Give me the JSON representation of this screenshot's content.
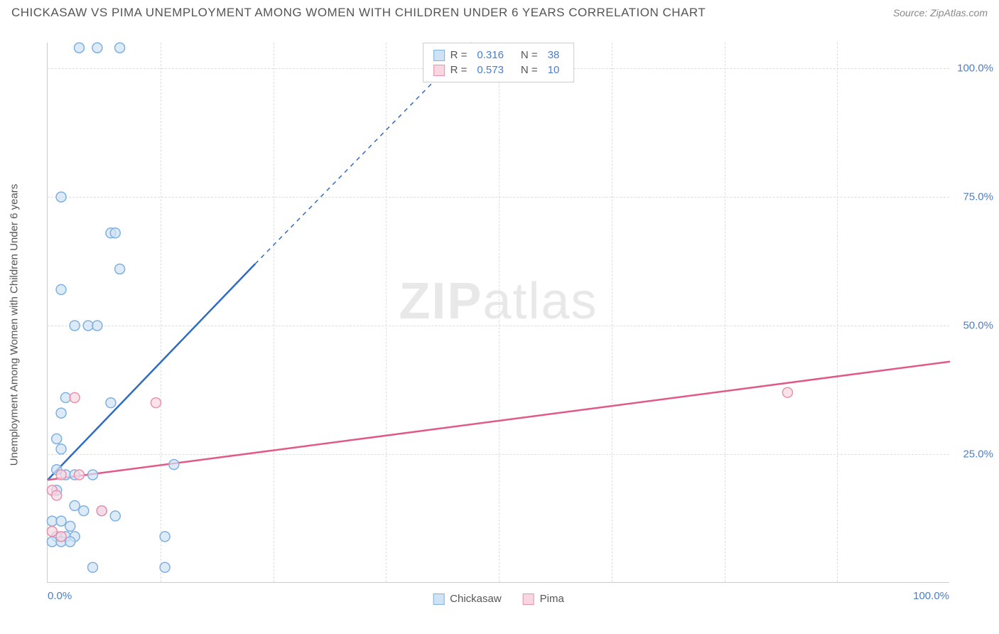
{
  "header": {
    "title": "CHICKASAW VS PIMA UNEMPLOYMENT AMONG WOMEN WITH CHILDREN UNDER 6 YEARS CORRELATION CHART",
    "source": "Source: ZipAtlas.com"
  },
  "chart": {
    "type": "scatter",
    "y_axis_label": "Unemployment Among Women with Children Under 6 years",
    "xlim": [
      0,
      100
    ],
    "ylim": [
      0,
      105
    ],
    "y_ticks": [
      25,
      50,
      75,
      100
    ],
    "y_tick_labels": [
      "25.0%",
      "50.0%",
      "75.0%",
      "100.0%"
    ],
    "x_tick_labels": {
      "min": "0.0%",
      "max": "100.0%"
    },
    "x_grid_positions": [
      12.5,
      25,
      37.5,
      50,
      62.5,
      75,
      87.5
    ],
    "background_color": "#ffffff",
    "grid_color": "#dddddd",
    "axis_color": "#cccccc",
    "tick_label_color": "#4a7ec9",
    "marker_radius": 7,
    "marker_stroke_width": 1.5,
    "watermark": "ZIPatlas",
    "series": [
      {
        "name": "Chickasaw",
        "color_fill": "#cfe2f6",
        "color_stroke": "#7fb0e0",
        "line_color": "#2e6bc5",
        "points": [
          [
            3.5,
            104
          ],
          [
            5.5,
            104
          ],
          [
            8,
            104
          ],
          [
            1.5,
            75
          ],
          [
            7,
            68
          ],
          [
            7.5,
            68
          ],
          [
            8,
            61
          ],
          [
            1.5,
            57
          ],
          [
            3,
            50
          ],
          [
            4.5,
            50
          ],
          [
            5.5,
            50
          ],
          [
            2,
            36
          ],
          [
            7,
            35
          ],
          [
            1.5,
            33
          ],
          [
            1,
            28
          ],
          [
            1.5,
            26
          ],
          [
            14,
            23
          ],
          [
            1,
            22
          ],
          [
            2,
            21
          ],
          [
            3,
            21
          ],
          [
            5,
            21
          ],
          [
            1,
            18
          ],
          [
            3,
            15
          ],
          [
            4,
            14
          ],
          [
            6,
            14
          ],
          [
            7.5,
            13
          ],
          [
            0.5,
            12
          ],
          [
            1.5,
            12
          ],
          [
            2.5,
            11
          ],
          [
            1,
            9
          ],
          [
            2,
            9
          ],
          [
            3,
            9
          ],
          [
            13,
            9
          ],
          [
            0.5,
            8
          ],
          [
            1.5,
            8
          ],
          [
            2.5,
            8
          ],
          [
            5,
            3
          ],
          [
            13,
            3
          ]
        ],
        "trend": {
          "x1": 0,
          "y1": 20,
          "x2": 23,
          "y2": 62,
          "x2_dash": 47,
          "y2_dash": 105
        }
      },
      {
        "name": "Pima",
        "color_fill": "#f9d7e1",
        "color_stroke": "#e890ac",
        "line_color": "#e05a87",
        "points": [
          [
            82,
            37
          ],
          [
            12,
            35
          ],
          [
            3,
            36
          ],
          [
            1.5,
            21
          ],
          [
            3.5,
            21
          ],
          [
            0.5,
            18
          ],
          [
            1,
            17
          ],
          [
            6,
            14
          ],
          [
            0.5,
            10
          ],
          [
            1.5,
            9
          ]
        ],
        "trend": {
          "x1": 0,
          "y1": 20,
          "x2": 100,
          "y2": 43
        }
      }
    ],
    "stats_box": {
      "rows": [
        {
          "swatch_fill": "#cfe2f6",
          "swatch_stroke": "#7fb0e0",
          "r_label": "R =",
          "r": "0.316",
          "n_label": "N =",
          "n": "38"
        },
        {
          "swatch_fill": "#f9d7e1",
          "swatch_stroke": "#e890ac",
          "r_label": "R =",
          "r": "0.573",
          "n_label": "N =",
          "n": "10"
        }
      ]
    },
    "bottom_legend": [
      {
        "swatch_fill": "#cfe2f6",
        "swatch_stroke": "#7fb0e0",
        "label": "Chickasaw"
      },
      {
        "swatch_fill": "#f9d7e1",
        "swatch_stroke": "#e890ac",
        "label": "Pima"
      }
    ]
  }
}
